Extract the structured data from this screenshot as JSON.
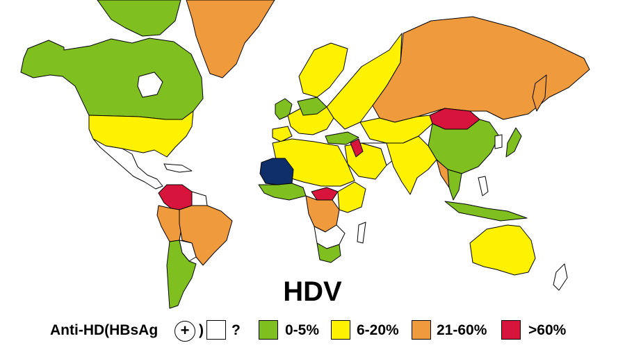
{
  "title": "HDV",
  "legend": {
    "label": "Anti-HD(HBsAg",
    "marker": "+",
    "close": ")",
    "unknown_label": "?",
    "items": [
      {
        "label": "0-5%",
        "color": "#7fbf1f"
      },
      {
        "label": "6-20%",
        "color": "#fff200"
      },
      {
        "label": "21-60%",
        "color": "#ef9a3c"
      },
      {
        "label": ">60%",
        "color": "#d7143c"
      }
    ],
    "unknown_color": "#ffffff"
  },
  "extra_color": "#0f2f6b"
}
